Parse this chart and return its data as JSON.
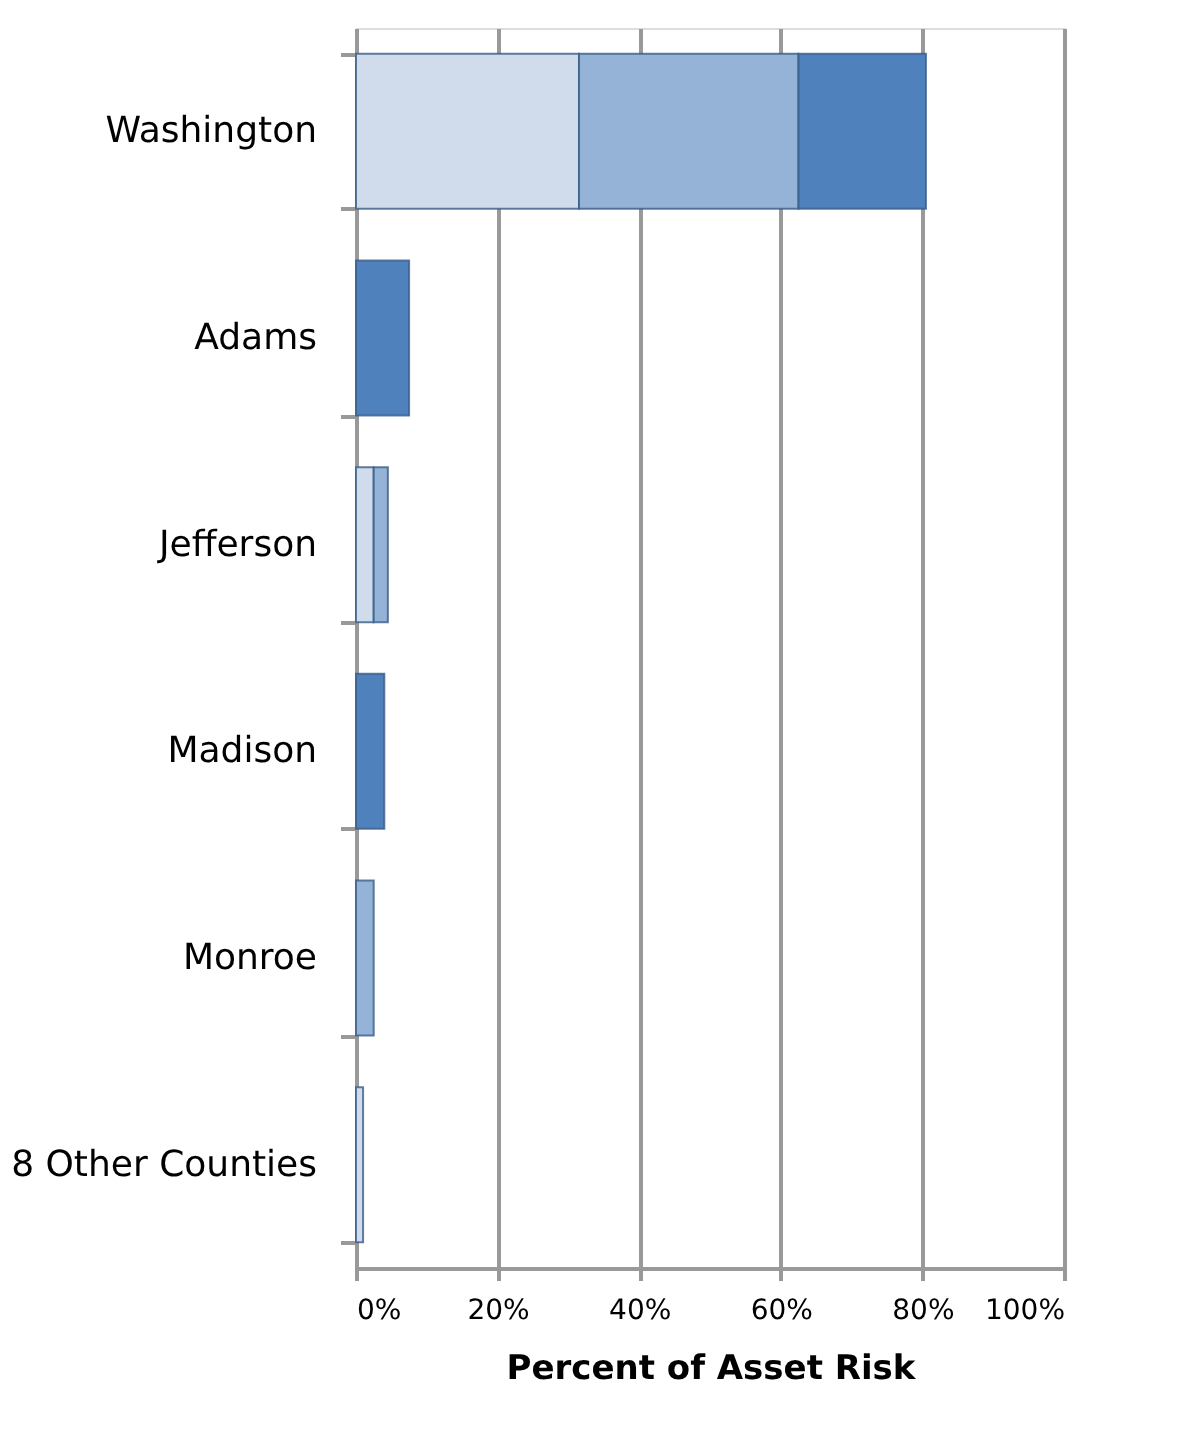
{
  "chart_data": {
    "type": "bar",
    "orientation": "horizontal",
    "stacked": true,
    "xlabel": "Percent of Asset Risk",
    "categories": [
      "Washington",
      "Adams",
      "Jefferson",
      "Madison",
      "Monroe",
      "8 Other Counties"
    ],
    "series": [
      {
        "color": "#d0dcec",
        "values": [
          31.5,
          null,
          2.5,
          null,
          null,
          1
        ]
      },
      {
        "color": "#95b3d7",
        "values": [
          31,
          null,
          2,
          null,
          2.5,
          null
        ]
      },
      {
        "color": "#4f81bd",
        "values": [
          18,
          7.5,
          null,
          4,
          null,
          null
        ]
      }
    ],
    "xlim": [
      0,
      100
    ],
    "xticks": [
      {
        "value": 0,
        "label": "0%"
      },
      {
        "value": 20,
        "label": "20%"
      },
      {
        "value": 40,
        "label": "40%"
      },
      {
        "value": 60,
        "label": "60%"
      },
      {
        "value": 80,
        "label": "80%"
      },
      {
        "value": 100,
        "label": "100%"
      }
    ],
    "grid": "x"
  }
}
